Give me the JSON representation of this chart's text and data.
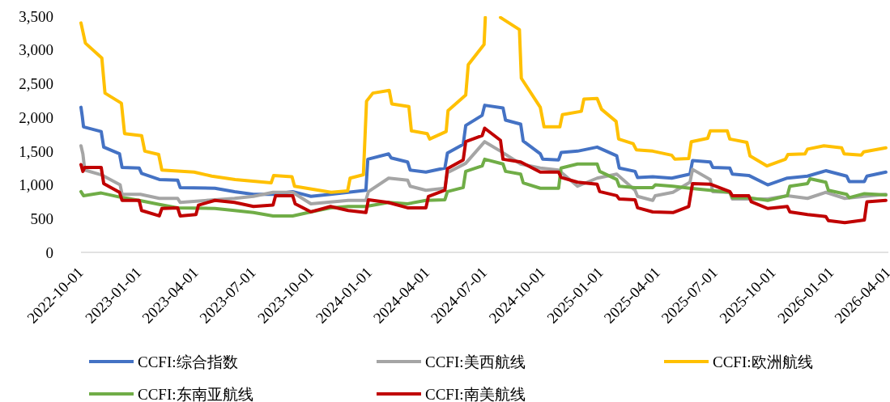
{
  "chart_data": {
    "type": "line",
    "xlim": [
      "2022-10-01",
      "2026-04-01"
    ],
    "ylim": [
      0,
      3500
    ],
    "xticks": [
      "2022-10-01",
      "2023-01-01",
      "2023-04-01",
      "2023-07-01",
      "2023-10-01",
      "2024-01-01",
      "2024-04-01",
      "2024-07-01",
      "2024-10-01",
      "2025-01-01",
      "2025-04-01",
      "2025-07-01",
      "2025-10-01",
      "2026-01-01",
      "2026-04-01"
    ],
    "yticks": [
      0,
      500,
      {
        "value": 1000,
        "label": "1,000"
      },
      {
        "value": 1500,
        "label": "1,500"
      },
      {
        "value": 2000,
        "label": "2,000"
      },
      {
        "value": 2500,
        "label": "2,500"
      },
      {
        "value": 3000,
        "label": "3,000"
      },
      {
        "value": 3500,
        "label": "3,500"
      }
    ],
    "legend": "bottom",
    "marker": "none",
    "line_style": "solid",
    "series": [
      {
        "name": "CCFI:综合指数",
        "color": "#4472c4",
        "x": [
          "2022-10-01",
          "2022-10-03",
          "2022-10-05",
          "2022-11-02",
          "2022-11-06",
          "2022-12-01",
          "2022-12-05",
          "2023-01-01",
          "2023-01-05",
          "2023-02-02",
          "2023-03-03",
          "2023-03-07",
          "2023-05-01",
          "2023-06-01",
          "2023-07-01",
          "2023-08-01",
          "2023-09-01",
          "2023-09-30",
          "2023-10-31",
          "2023-11-28",
          "2023-12-26",
          "2023-12-29",
          "2024-01-31",
          "2024-02-04",
          "2024-03-01",
          "2024-03-05",
          "2024-03-30",
          "2024-04-29",
          "2024-05-03",
          "2024-05-28",
          "2024-06-01",
          "2024-06-27",
          "2024-07-01",
          "2024-07-30",
          "2024-08-03",
          "2024-08-27",
          "2024-08-31",
          "2024-09-27",
          "2024-10-01",
          "2024-10-26",
          "2024-10-30",
          "2024-11-25",
          "2024-12-26",
          "2025-01-26",
          "2025-01-30",
          "2025-02-24",
          "2025-02-28",
          "2025-03-24",
          "2025-04-23",
          "2025-05-22",
          "2025-05-26",
          "2025-06-23",
          "2025-06-27",
          "2025-07-24",
          "2025-07-28",
          "2025-08-23",
          "2025-09-22",
          "2025-10-23",
          "2025-11-24",
          "2025-12-23",
          "2026-01-25",
          "2026-01-29",
          "2026-02-22",
          "2026-02-26",
          "2026-03-28"
        ],
        "values": [
          2150,
          2020,
          1860,
          1790,
          1560,
          1460,
          1260,
          1250,
          1170,
          1080,
          1070,
          960,
          950,
          900,
          860,
          860,
          900,
          830,
          860,
          890,
          920,
          1380,
          1460,
          1400,
          1340,
          1220,
          1190,
          1250,
          1470,
          1600,
          1880,
          2030,
          2180,
          2140,
          1960,
          1900,
          1650,
          1460,
          1380,
          1370,
          1480,
          1500,
          1560,
          1430,
          1250,
          1200,
          1110,
          1120,
          1100,
          1160,
          1360,
          1340,
          1260,
          1250,
          1160,
          1140,
          1000,
          1100,
          1130,
          1210,
          1130,
          1050,
          1050,
          1130,
          1190
        ]
      },
      {
        "name": "CCFI:美西航线",
        "color": "#a5a5a5",
        "x": [
          "2022-10-01",
          "2022-10-04",
          "2022-10-07",
          "2022-11-02",
          "2022-12-02",
          "2022-12-05",
          "2023-01-03",
          "2023-02-02",
          "2023-03-03",
          "2023-03-07",
          "2023-05-01",
          "2023-06-01",
          "2023-07-01",
          "2023-08-01",
          "2023-09-01",
          "2023-09-30",
          "2023-11-28",
          "2023-12-26",
          "2023-12-30",
          "2024-01-31",
          "2024-03-01",
          "2024-03-05",
          "2024-03-30",
          "2024-04-29",
          "2024-05-03",
          "2024-06-01",
          "2024-07-01",
          "2024-07-26",
          "2024-08-27",
          "2024-09-27",
          "2024-10-26",
          "2024-11-25",
          "2024-12-26",
          "2025-01-26",
          "2025-02-24",
          "2025-02-28",
          "2025-03-24",
          "2025-03-28",
          "2025-04-25",
          "2025-05-22",
          "2025-05-26",
          "2025-06-23",
          "2025-06-27",
          "2025-07-24",
          "2025-07-28",
          "2025-08-23",
          "2025-09-22",
          "2025-10-23",
          "2025-11-24",
          "2025-12-23",
          "2026-01-22",
          "2026-02-22",
          "2026-03-28"
        ],
        "values": [
          1580,
          1460,
          1220,
          1150,
          1000,
          860,
          860,
          800,
          800,
          740,
          780,
          800,
          830,
          890,
          890,
          720,
          770,
          770,
          900,
          1100,
          1070,
          980,
          920,
          950,
          1180,
          1320,
          1640,
          1500,
          1310,
          1250,
          1220,
          980,
          1100,
          1160,
          920,
          830,
          770,
          840,
          890,
          1040,
          1230,
          1080,
          900,
          890,
          790,
          790,
          790,
          840,
          800,
          890,
          800,
          830,
          860
        ]
      },
      {
        "name": "CCFI:欧洲航线",
        "color": "#ffc000",
        "x": [
          "2022-10-01",
          "2022-10-08",
          "2022-11-03",
          "2022-11-08",
          "2022-12-04",
          "2022-12-09",
          "2023-01-05",
          "2023-01-10",
          "2023-02-01",
          "2023-02-06",
          "2023-03-29",
          "2023-04-26",
          "2023-06-02",
          "2023-07-29",
          "2023-08-02",
          "2023-08-31",
          "2023-09-04",
          "2023-11-01",
          "2023-11-27",
          "2023-12-01",
          "2023-12-22",
          "2023-12-27",
          "2024-01-06",
          "2024-02-01",
          "2024-02-05",
          "2024-03-03",
          "2024-03-07",
          "2024-04-01",
          "2024-04-05",
          "2024-05-01",
          "2024-05-04",
          "2024-06-01",
          "2024-06-05",
          "2024-06-30",
          "2024-07-02",
          "2024-07-15",
          "2024-07-26",
          "2024-08-25",
          "2024-08-28",
          "2024-09-27",
          "2024-10-03",
          "2024-10-28",
          "2024-11-01",
          "2024-12-01",
          "2024-12-05",
          "2024-12-26",
          "2025-01-02",
          "2025-01-25",
          "2025-01-29",
          "2025-02-21",
          "2025-02-26",
          "2025-03-24",
          "2025-04-23",
          "2025-04-28",
          "2025-05-20",
          "2025-05-24",
          "2025-06-19",
          "2025-06-23",
          "2025-07-20",
          "2025-07-24",
          "2025-08-20",
          "2025-08-25",
          "2025-09-21",
          "2025-10-20",
          "2025-10-24",
          "2025-11-20",
          "2025-11-24",
          "2025-12-20",
          "2026-01-17",
          "2026-01-21",
          "2026-02-17",
          "2026-02-21",
          "2026-03-28"
        ],
        "values": [
          3400,
          3100,
          2880,
          2360,
          2210,
          1760,
          1730,
          1500,
          1450,
          1220,
          1190,
          1130,
          1080,
          1030,
          1140,
          1120,
          980,
          890,
          910,
          1100,
          1150,
          2240,
          2360,
          2400,
          2200,
          2160,
          1800,
          1760,
          1680,
          1790,
          2100,
          2330,
          2780,
          3080,
          3480,
          null,
          3480,
          3300,
          2580,
          2150,
          1860,
          1860,
          2040,
          2090,
          2270,
          2280,
          2120,
          1940,
          1680,
          1610,
          1520,
          1500,
          1440,
          1380,
          1390,
          1640,
          1690,
          1800,
          1800,
          1680,
          1630,
          1430,
          1280,
          1380,
          1450,
          1460,
          1530,
          1580,
          1550,
          1460,
          1440,
          1490,
          1550
        ]
      },
      {
        "name": "CCFI:东南亚航线",
        "color": "#70ad47",
        "x": [
          "2022-10-01",
          "2022-10-05",
          "2022-11-02",
          "2022-12-01",
          "2023-01-01",
          "2023-02-02",
          "2023-03-03",
          "2023-05-01",
          "2023-06-01",
          "2023-07-01",
          "2023-08-01",
          "2023-09-01",
          "2023-09-30",
          "2023-10-31",
          "2023-11-28",
          "2023-12-26",
          "2024-01-31",
          "2024-03-01",
          "2024-03-30",
          "2024-04-29",
          "2024-05-03",
          "2024-05-28",
          "2024-06-01",
          "2024-06-27",
          "2024-07-01",
          "2024-07-30",
          "2024-08-03",
          "2024-08-27",
          "2024-08-31",
          "2024-09-27",
          "2024-10-26",
          "2024-10-30",
          "2024-11-25",
          "2024-12-26",
          "2024-12-30",
          "2025-01-26",
          "2025-01-30",
          "2025-02-24",
          "2025-03-24",
          "2025-03-28",
          "2025-04-25",
          "2025-05-22",
          "2025-06-23",
          "2025-07-24",
          "2025-07-28",
          "2025-08-23",
          "2025-09-22",
          "2025-10-23",
          "2025-10-27",
          "2025-11-24",
          "2025-11-28",
          "2025-12-23",
          "2025-12-27",
          "2026-01-25",
          "2026-01-29",
          "2026-02-22",
          "2026-03-28"
        ],
        "values": [
          900,
          840,
          880,
          820,
          770,
          710,
          660,
          650,
          620,
          590,
          540,
          540,
          600,
          660,
          680,
          680,
          740,
          720,
          770,
          780,
          900,
          960,
          1200,
          1280,
          1380,
          1310,
          1200,
          1160,
          1030,
          950,
          950,
          1250,
          1310,
          1310,
          1200,
          1080,
          980,
          960,
          960,
          1000,
          980,
          950,
          920,
          890,
          810,
          810,
          770,
          840,
          980,
          1020,
          1090,
          1040,
          920,
          860,
          810,
          870,
          850
        ]
      },
      {
        "name": "CCFI:南美航线",
        "color": "#c00000",
        "x": [
          "2022-10-01",
          "2022-10-04",
          "2022-10-07",
          "2022-11-02",
          "2022-11-06",
          "2022-12-01",
          "2022-12-05",
          "2023-01-01",
          "2023-01-05",
          "2023-02-02",
          "2023-02-06",
          "2023-03-03",
          "2023-03-07",
          "2023-04-01",
          "2023-04-05",
          "2023-05-01",
          "2023-06-01",
          "2023-07-01",
          "2023-08-01",
          "2023-08-05",
          "2023-09-01",
          "2023-09-05",
          "2023-09-30",
          "2023-10-31",
          "2023-11-28",
          "2023-12-26",
          "2023-12-30",
          "2024-01-30",
          "2024-03-01",
          "2024-03-30",
          "2024-04-03",
          "2024-04-29",
          "2024-05-03",
          "2024-05-28",
          "2024-06-01",
          "2024-06-27",
          "2024-07-01",
          "2024-07-26",
          "2024-07-30",
          "2024-08-27",
          "2024-09-27",
          "2024-10-26",
          "2024-10-30",
          "2024-11-25",
          "2024-12-26",
          "2024-12-30",
          "2025-01-26",
          "2025-01-30",
          "2025-02-24",
          "2025-02-28",
          "2025-03-24",
          "2025-04-25",
          "2025-05-20",
          "2025-05-26",
          "2025-06-23",
          "2025-07-24",
          "2025-07-28",
          "2025-08-23",
          "2025-08-27",
          "2025-09-22",
          "2025-10-23",
          "2025-10-27",
          "2025-11-24",
          "2025-12-23",
          "2025-12-27",
          "2026-01-22",
          "2026-02-22",
          "2026-02-26",
          "2026-03-28"
        ],
        "values": [
          1300,
          1200,
          1260,
          1260,
          1020,
          890,
          770,
          770,
          620,
          540,
          650,
          660,
          540,
          560,
          700,
          770,
          740,
          680,
          700,
          840,
          840,
          720,
          600,
          680,
          620,
          590,
          780,
          740,
          660,
          660,
          830,
          920,
          1240,
          1370,
          1640,
          1730,
          1840,
          1660,
          1380,
          1340,
          1190,
          1190,
          1110,
          1040,
          1010,
          900,
          840,
          790,
          780,
          660,
          600,
          590,
          680,
          1020,
          1010,
          900,
          840,
          840,
          750,
          650,
          680,
          600,
          560,
          530,
          470,
          440,
          480,
          750,
          770
        ]
      }
    ]
  }
}
